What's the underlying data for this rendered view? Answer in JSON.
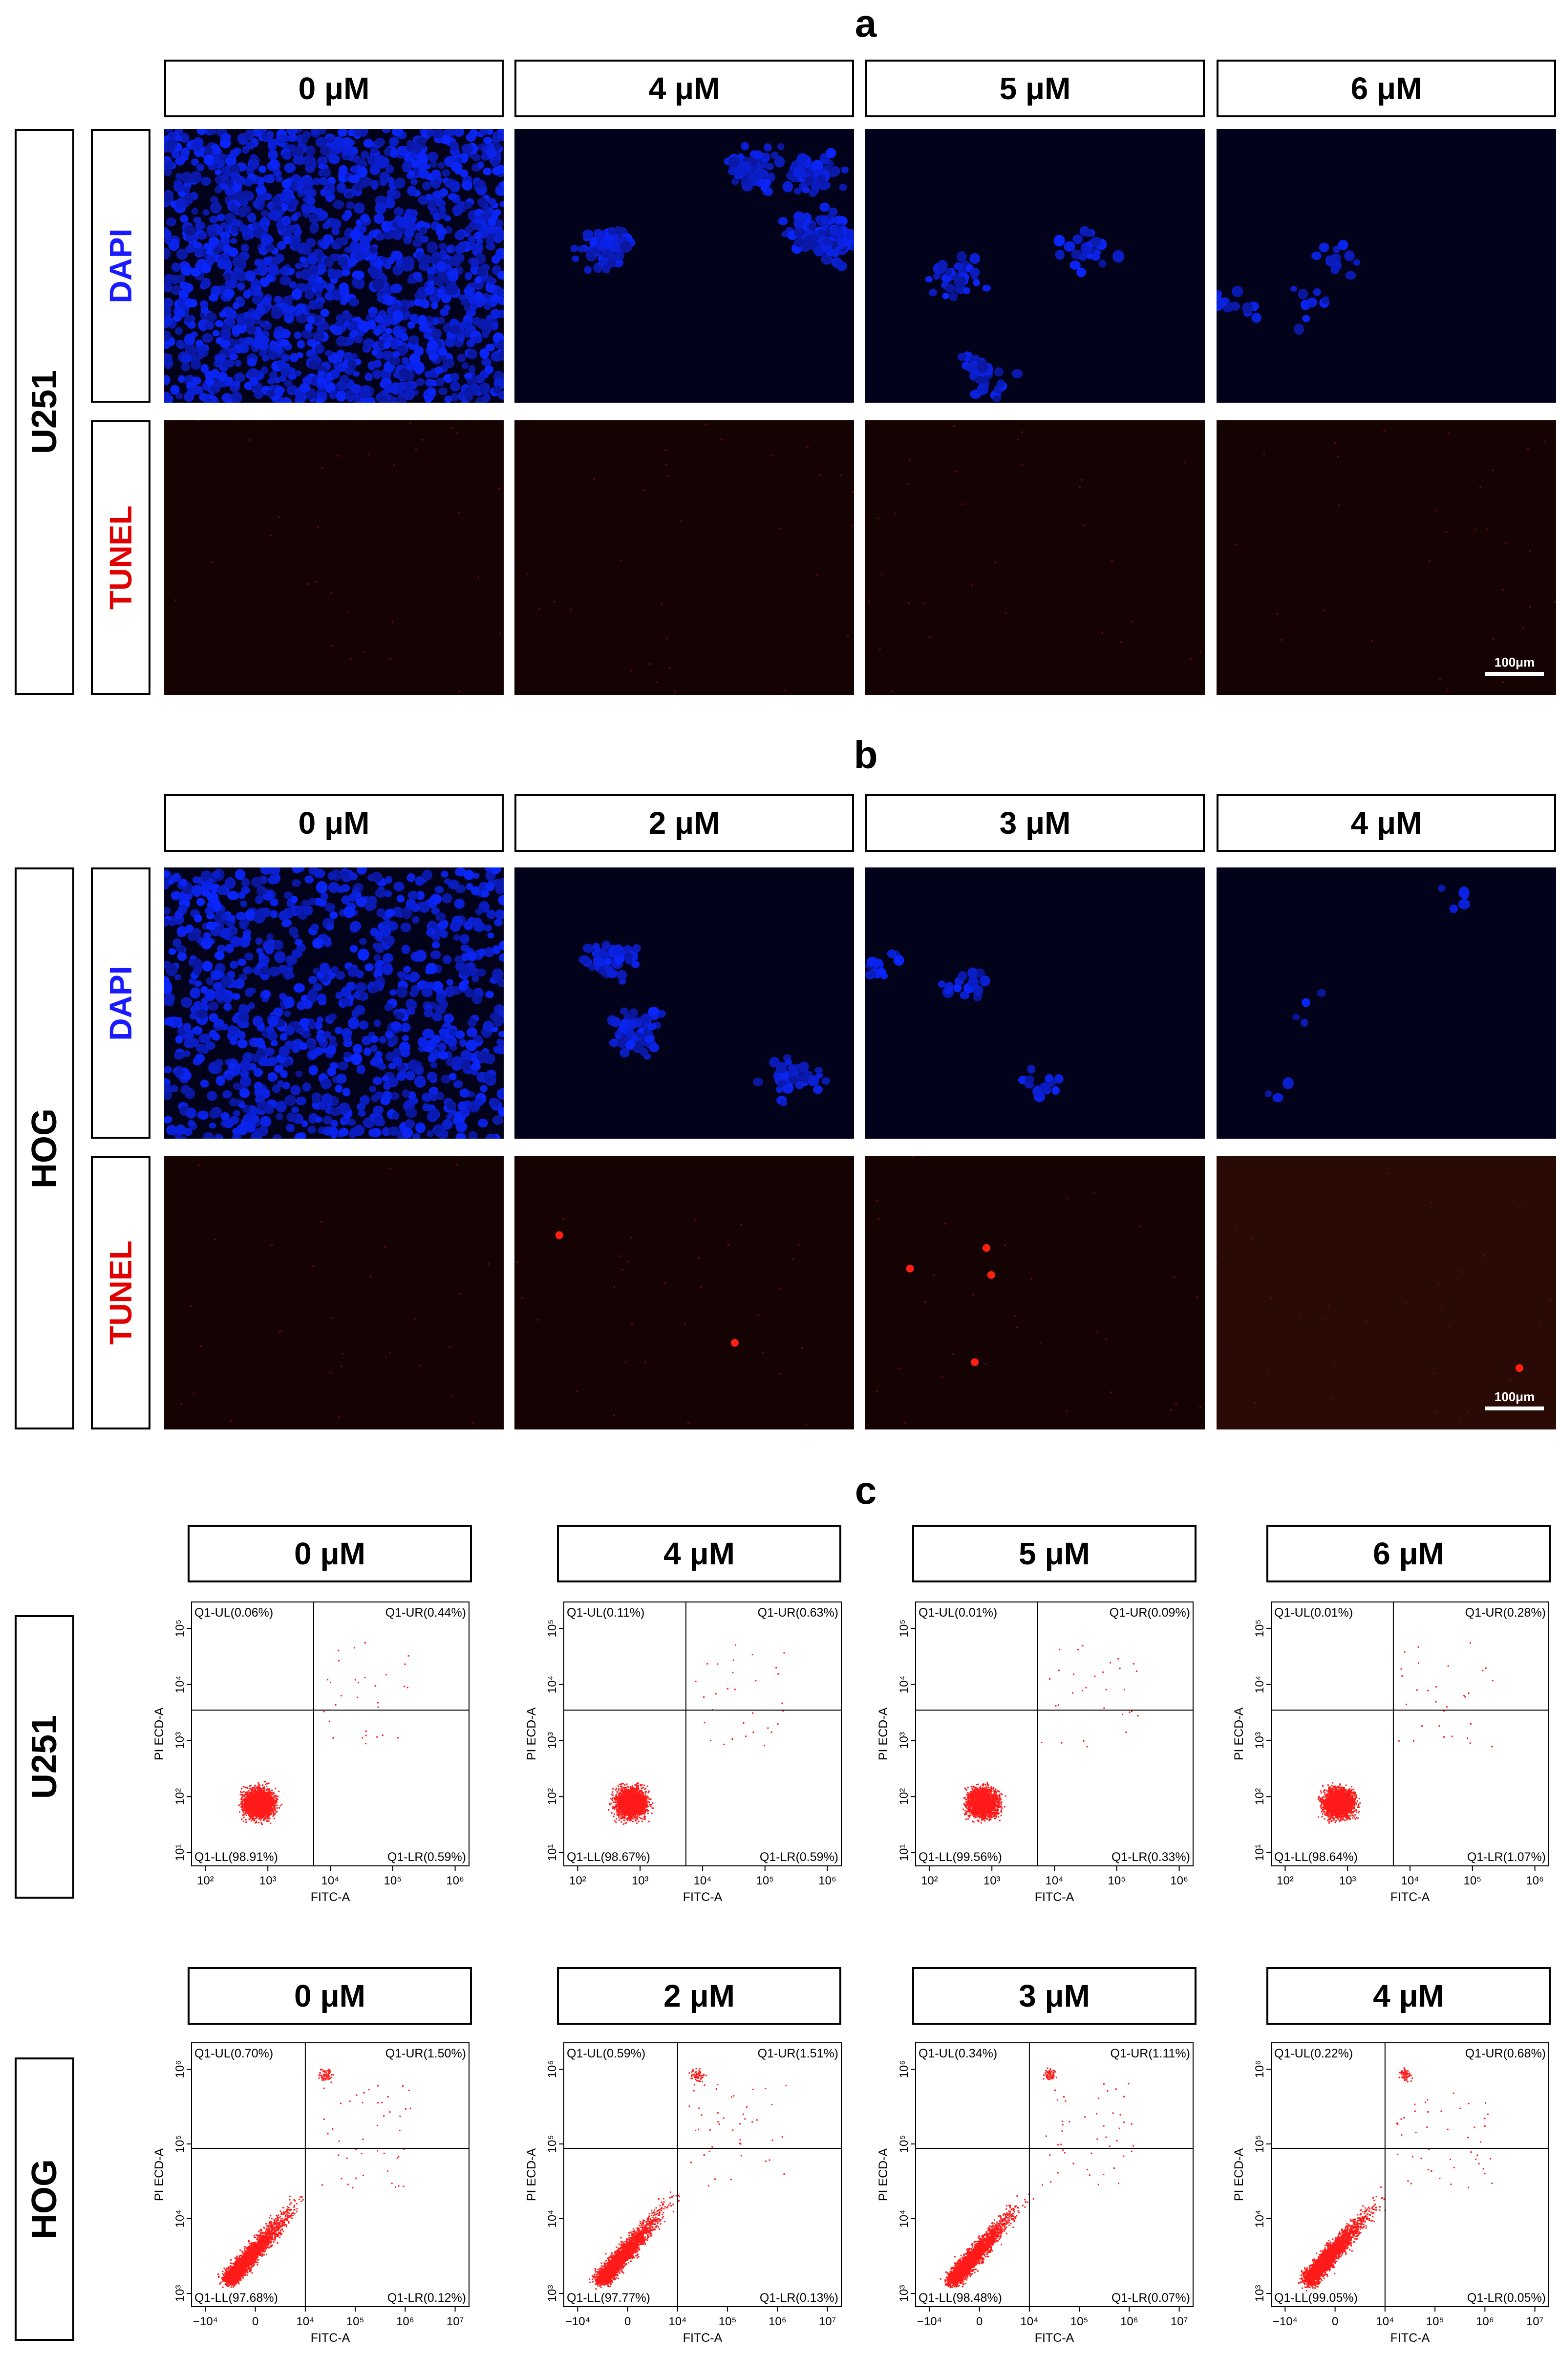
{
  "panels": {
    "a": {
      "label": "a",
      "cell_line": "U251",
      "concentrations": [
        "0 μM",
        "4 μM",
        "5 μM",
        "6 μM"
      ],
      "stains": [
        "DAPI",
        "TUNEL"
      ],
      "scale_bar": "100μm",
      "colors": {
        "dapi": "#1a2cff",
        "tunel": "#d60000"
      },
      "dapi_density": [
        1.0,
        0.45,
        0.22,
        0.14
      ],
      "tunel_spots": [
        0,
        0,
        0,
        0
      ]
    },
    "b": {
      "label": "b",
      "cell_line": "HOG",
      "concentrations": [
        "0 μM",
        "2 μM",
        "3 μM",
        "4 μM"
      ],
      "stains": [
        "DAPI",
        "TUNEL"
      ],
      "scale_bar": "100μm",
      "colors": {
        "dapi": "#1a2cff",
        "tunel": "#d60000"
      },
      "dapi_density": [
        0.8,
        0.3,
        0.16,
        0.07
      ],
      "tunel_spots": [
        0,
        2,
        4,
        1
      ]
    },
    "c": {
      "label": "c",
      "axis_labels": {
        "x": "FITC-A",
        "y": "PI ECD-A"
      },
      "rows": [
        {
          "cell_line": "U251",
          "concentrations": [
            "0 μM",
            "4 μM",
            "5 μM",
            "6 μM"
          ],
          "x_ticks": [
            "10²",
            "10³",
            "10⁴",
            "10⁵",
            "10⁶"
          ],
          "y_ticks": [
            "10¹",
            "10²",
            "10³",
            "10⁴",
            "10⁵"
          ],
          "plots": [
            {
              "UL": "Q1-UL(0.06%)",
              "UR": "Q1-UR(0.44%)",
              "LL": "Q1-LL(98.91%)",
              "LR": "Q1-LR(0.59%)"
            },
            {
              "UL": "Q1-UL(0.11%)",
              "UR": "Q1-UR(0.63%)",
              "LL": "Q1-LL(98.67%)",
              "LR": "Q1-LR(0.59%)"
            },
            {
              "UL": "Q1-UL(0.01%)",
              "UR": "Q1-UR(0.09%)",
              "LL": "Q1-LL(99.56%)",
              "LR": "Q1-LR(0.33%)"
            },
            {
              "UL": "Q1-UL(0.01%)",
              "UR": "Q1-UR(0.28%)",
              "LL": "Q1-LL(98.64%)",
              "LR": "Q1-LR(1.07%)"
            }
          ]
        },
        {
          "cell_line": "HOG",
          "concentrations": [
            "0 μM",
            "2 μM",
            "3 μM",
            "4 μM"
          ],
          "x_ticks": [
            "−10⁴",
            "0",
            "10⁴",
            "10⁵",
            "10⁶",
            "10⁷"
          ],
          "y_ticks": [
            "10³",
            "10⁴",
            "10⁵",
            "10⁶"
          ],
          "plots": [
            {
              "UL": "Q1-UL(0.70%)",
              "UR": "Q1-UR(1.50%)",
              "LL": "Q1-LL(97.68%)",
              "LR": "Q1-LR(0.12%)"
            },
            {
              "UL": "Q1-UL(0.59%)",
              "UR": "Q1-UR(1.51%)",
              "LL": "Q1-LL(97.77%)",
              "LR": "Q1-LR(0.13%)"
            },
            {
              "UL": "Q1-UL(0.34%)",
              "UR": "Q1-UR(1.11%)",
              "LL": "Q1-LL(98.48%)",
              "LR": "Q1-LR(0.07%)"
            },
            {
              "UL": "Q1-UL(0.22%)",
              "UR": "Q1-UR(0.68%)",
              "LL": "Q1-LL(99.05%)",
              "LR": "Q1-LR(0.05%)"
            }
          ]
        }
      ],
      "dot_color": "#ff1a1a"
    }
  }
}
